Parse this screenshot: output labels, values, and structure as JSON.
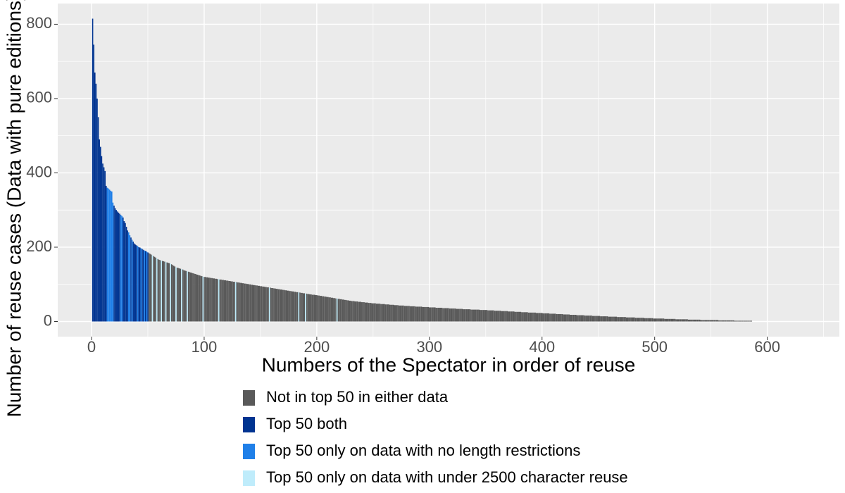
{
  "chart_data": {
    "type": "bar",
    "x_label": "Numbers of the Spectator in order of reuse",
    "y_label": "Number of reuse cases (Data with pure editions)",
    "xlim": [
      -30,
      664
    ],
    "ylim": [
      -40.75,
      855.75
    ],
    "xticks": [
      0,
      100,
      200,
      300,
      400,
      500,
      600
    ],
    "yticks": [
      0,
      200,
      400,
      600,
      800
    ],
    "grid": true,
    "minor_grid": true,
    "legend_position": "bottom",
    "series": [
      {
        "name": "Not in top 50 in either data",
        "color": "#595959",
        "x": [
          51,
          52,
          53,
          55,
          56,
          57,
          59,
          60,
          61,
          63,
          64,
          65,
          67,
          68,
          69,
          71,
          72,
          73,
          74,
          76,
          77,
          78,
          79,
          81,
          82,
          83,
          84,
          86,
          87,
          88,
          89,
          90,
          91,
          92,
          93,
          94,
          95,
          96,
          97,
          98,
          100,
          101,
          102,
          103,
          104,
          105,
          106,
          107,
          108,
          109,
          110,
          111,
          112,
          114,
          115,
          116,
          117,
          118,
          119,
          120,
          121,
          122,
          123,
          124,
          125,
          126,
          127,
          129,
          130,
          131,
          132,
          133,
          134,
          135,
          136,
          137,
          138,
          139,
          140,
          141,
          142,
          143,
          144,
          145,
          146,
          147,
          148,
          149,
          150,
          151,
          152,
          153,
          154,
          155,
          156,
          157,
          159,
          160,
          161,
          162,
          163,
          164,
          165,
          166,
          167,
          168,
          169,
          170,
          171,
          172,
          173,
          174,
          175,
          176,
          177,
          178,
          179,
          180,
          181,
          182,
          183,
          185,
          186,
          187,
          188,
          189,
          191,
          192,
          193,
          194,
          195,
          196,
          197,
          198,
          199,
          200,
          201,
          202,
          203,
          204,
          205,
          206,
          207,
          208,
          209,
          210,
          211,
          212,
          213,
          214,
          215,
          216,
          217,
          219,
          220,
          221,
          222,
          223,
          224,
          225,
          226,
          227,
          228,
          229,
          230,
          231,
          232,
          233,
          234,
          235,
          236,
          237,
          238,
          239,
          240,
          241,
          242,
          243,
          244,
          245,
          246,
          247,
          248,
          249,
          250,
          251,
          252,
          253,
          254,
          255,
          256,
          257,
          258,
          259,
          260,
          261,
          262,
          263,
          264,
          265,
          266,
          267,
          268,
          269,
          270,
          271,
          272,
          273,
          274,
          275,
          276,
          277,
          278,
          279,
          280,
          281,
          282,
          283,
          284,
          285,
          286,
          287,
          288,
          289,
          290,
          291,
          292,
          293,
          294,
          295,
          296,
          297,
          298,
          299,
          300,
          301,
          302,
          303,
          304,
          305,
          306,
          307,
          308,
          309,
          310,
          311,
          312,
          313,
          314,
          315,
          316,
          317,
          318,
          319,
          320,
          321,
          322,
          323,
          324,
          325,
          326,
          327,
          328,
          329,
          330,
          331,
          332,
          333,
          334,
          335,
          336,
          337,
          338,
          339,
          340,
          341,
          342,
          343,
          344,
          345,
          346,
          347,
          348,
          349,
          350,
          351,
          352,
          353,
          354,
          355,
          356,
          357,
          358,
          359,
          360,
          361,
          362,
          363,
          364,
          365,
          366,
          367,
          368,
          369,
          370,
          371,
          372,
          373,
          374,
          375,
          376,
          377,
          378,
          379,
          380,
          381,
          382,
          383,
          384,
          385,
          386,
          387,
          388,
          389,
          390,
          391,
          392,
          393,
          394,
          395,
          396,
          397,
          398,
          399,
          400,
          401,
          402,
          403,
          404,
          405,
          406,
          407,
          408,
          409,
          410,
          411,
          412,
          413,
          414,
          415,
          416,
          417,
          418,
          419,
          420,
          421,
          422,
          423,
          424,
          425,
          426,
          427,
          428,
          429,
          430,
          431,
          432,
          433,
          434,
          435,
          436,
          437,
          438,
          439,
          440,
          441,
          442,
          443,
          444,
          445,
          446,
          447,
          448,
          449,
          450,
          451,
          452,
          453,
          454,
          455,
          456,
          457,
          458,
          459,
          460,
          461,
          462,
          463,
          464,
          465,
          466,
          467,
          468,
          469,
          470,
          471,
          472,
          473,
          474,
          475,
          476,
          477,
          478,
          479,
          480,
          481,
          482,
          483,
          484,
          485,
          486,
          487,
          488,
          489,
          490,
          491,
          492,
          493,
          494,
          495,
          496,
          497,
          498,
          499,
          500,
          501,
          502,
          503,
          504,
          505,
          506,
          507,
          508,
          509,
          510,
          511,
          512,
          513,
          514,
          515,
          516,
          517,
          518,
          519,
          520,
          521,
          522,
          523,
          524,
          525,
          526,
          527,
          528,
          529,
          530,
          531,
          532,
          533,
          534,
          535,
          536,
          537,
          538,
          539,
          540,
          541,
          542,
          543,
          544,
          545,
          546,
          547,
          548,
          549,
          550,
          551,
          552,
          553,
          554,
          555,
          556,
          557,
          558,
          559,
          560,
          561,
          562,
          563,
          564,
          565,
          566,
          567,
          568,
          569,
          570,
          571,
          572,
          573,
          574,
          575,
          576,
          577,
          578,
          579,
          580,
          581,
          582,
          583,
          584,
          585,
          586
        ],
        "values": [
          184,
          182,
          180,
          176,
          174,
          172,
          168,
          166,
          165,
          163,
          162,
          161,
          159,
          158,
          157,
          154,
          152,
          150,
          148,
          145,
          144,
          143,
          142,
          140,
          138,
          137,
          136,
          134,
          133,
          132,
          131,
          130,
          129,
          128,
          127,
          126,
          125,
          124,
          123,
          122,
          120,
          120,
          119,
          119,
          118,
          118,
          117,
          117,
          116,
          116,
          115,
          115,
          114,
          113,
          113,
          112,
          112,
          111,
          111,
          110,
          110,
          109,
          109,
          108,
          108,
          107,
          107,
          106,
          105,
          105,
          104,
          104,
          103,
          103,
          102,
          102,
          101,
          101,
          100,
          100,
          99,
          99,
          98,
          98,
          97,
          97,
          96,
          96,
          95,
          95,
          94,
          94,
          93,
          93,
          92,
          92,
          91,
          90,
          90,
          89,
          89,
          88,
          88,
          87,
          87,
          86,
          86,
          85,
          85,
          84,
          84,
          83,
          83,
          82,
          82,
          81,
          81,
          80,
          80,
          79,
          79,
          78,
          77,
          77,
          76,
          76,
          75,
          74,
          74,
          73,
          73,
          72,
          72,
          72,
          71,
          71,
          70,
          70,
          69,
          69,
          68,
          68,
          67,
          67,
          66,
          66,
          65,
          65,
          64,
          64,
          63,
          63,
          62,
          61,
          61,
          60,
          60,
          59,
          59,
          58,
          58,
          57,
          57,
          56,
          56,
          55,
          55,
          55,
          54,
          54,
          54,
          53,
          53,
          53,
          52,
          52,
          52,
          51,
          51,
          51,
          50,
          50,
          50,
          49,
          49,
          49,
          49,
          48,
          48,
          48,
          48,
          47,
          47,
          47,
          47,
          46,
          46,
          46,
          46,
          45,
          45,
          45,
          45,
          44,
          44,
          44,
          44,
          43,
          43,
          43,
          43,
          43,
          42,
          42,
          42,
          42,
          42,
          41,
          41,
          41,
          41,
          41,
          40,
          40,
          40,
          40,
          40,
          40,
          39,
          39,
          39,
          39,
          39,
          39,
          38,
          38,
          38,
          38,
          38,
          38,
          37,
          37,
          37,
          37,
          37,
          37,
          36,
          36,
          36,
          36,
          36,
          36,
          35,
          35,
          35,
          35,
          35,
          35,
          34,
          34,
          34,
          34,
          34,
          34,
          33,
          33,
          33,
          33,
          33,
          33,
          33,
          32,
          32,
          32,
          32,
          32,
          32,
          32,
          32,
          31,
          31,
          31,
          31,
          31,
          31,
          31,
          30,
          30,
          30,
          30,
          30,
          30,
          29,
          29,
          29,
          29,
          29,
          29,
          28,
          28,
          28,
          28,
          28,
          28,
          27,
          27,
          27,
          27,
          27,
          27,
          26,
          26,
          26,
          26,
          26,
          26,
          25,
          25,
          25,
          25,
          25,
          25,
          24,
          24,
          24,
          24,
          24,
          24,
          24,
          23,
          23,
          23,
          23,
          23,
          23,
          22,
          22,
          22,
          22,
          22,
          22,
          21,
          21,
          21,
          21,
          21,
          21,
          20,
          20,
          20,
          20,
          20,
          20,
          19,
          19,
          19,
          19,
          19,
          19,
          18,
          18,
          18,
          18,
          18,
          18,
          17,
          17,
          17,
          17,
          17,
          17,
          17,
          16,
          16,
          16,
          16,
          16,
          16,
          16,
          15,
          15,
          15,
          15,
          15,
          15,
          15,
          14,
          14,
          14,
          14,
          14,
          14,
          14,
          13,
          13,
          13,
          13,
          13,
          13,
          13,
          13,
          12,
          12,
          12,
          12,
          12,
          12,
          12,
          12,
          11,
          11,
          11,
          11,
          11,
          11,
          11,
          11,
          10,
          10,
          10,
          10,
          10,
          10,
          10,
          10,
          9,
          9,
          9,
          9,
          9,
          9,
          9,
          9,
          8,
          8,
          8,
          8,
          8,
          8,
          8,
          8,
          8,
          8,
          7,
          7,
          7,
          7,
          7,
          7,
          7,
          7,
          7,
          7,
          6,
          6,
          6,
          6,
          6,
          6,
          6,
          6,
          6,
          6,
          6,
          5,
          5,
          5,
          5,
          5,
          5,
          5,
          5,
          5,
          5,
          5,
          4,
          4,
          4,
          4,
          4,
          4,
          4,
          4,
          4,
          4,
          4,
          4,
          4,
          4,
          4,
          4,
          3,
          3,
          3,
          3,
          3,
          3,
          3,
          3,
          3,
          3,
          3,
          3,
          3,
          3,
          2,
          2,
          2,
          2,
          2,
          2,
          2,
          2,
          2,
          2,
          2,
          2,
          2,
          2,
          2,
          2
        ]
      },
      {
        "name": "Top 50 both",
        "color": "#003491",
        "x": [
          1,
          2,
          3,
          4,
          5,
          6,
          7,
          8,
          9,
          10,
          11,
          12,
          13,
          20,
          21,
          22,
          23,
          24,
          25,
          28,
          29,
          30,
          31,
          32,
          35,
          37,
          38,
          39,
          40,
          42,
          43,
          45,
          46,
          48,
          50
        ],
        "values": [
          815,
          745,
          670,
          640,
          600,
          550,
          490,
          470,
          445,
          425,
          415,
          405,
          365,
          312,
          305,
          300,
          296,
          293,
          290,
          280,
          270,
          265,
          255,
          245,
          226,
          215,
          210,
          207,
          205,
          200,
          199,
          195,
          193,
          190,
          186
        ]
      },
      {
        "name": "Top 50 only on data with no length restrictions",
        "color": "#1f7fe8",
        "x": [
          14,
          15,
          16,
          17,
          18,
          19,
          26,
          27,
          33,
          34,
          36,
          41,
          44,
          47,
          49
        ],
        "values": [
          360,
          358,
          355,
          352,
          350,
          320,
          287,
          284,
          240,
          232,
          220,
          203,
          197,
          191,
          188
        ]
      },
      {
        "name": "Top 50 only on data with under 2500 character reuse",
        "color": "#bfecfb",
        "x": [
          54,
          58,
          62,
          66,
          70,
          75,
          80,
          85,
          99,
          113,
          128,
          158,
          184,
          190,
          218
        ],
        "values": [
          178,
          170,
          164,
          160,
          156,
          146,
          141,
          135,
          121,
          114,
          106,
          91,
          78,
          75,
          62
        ]
      }
    ]
  }
}
